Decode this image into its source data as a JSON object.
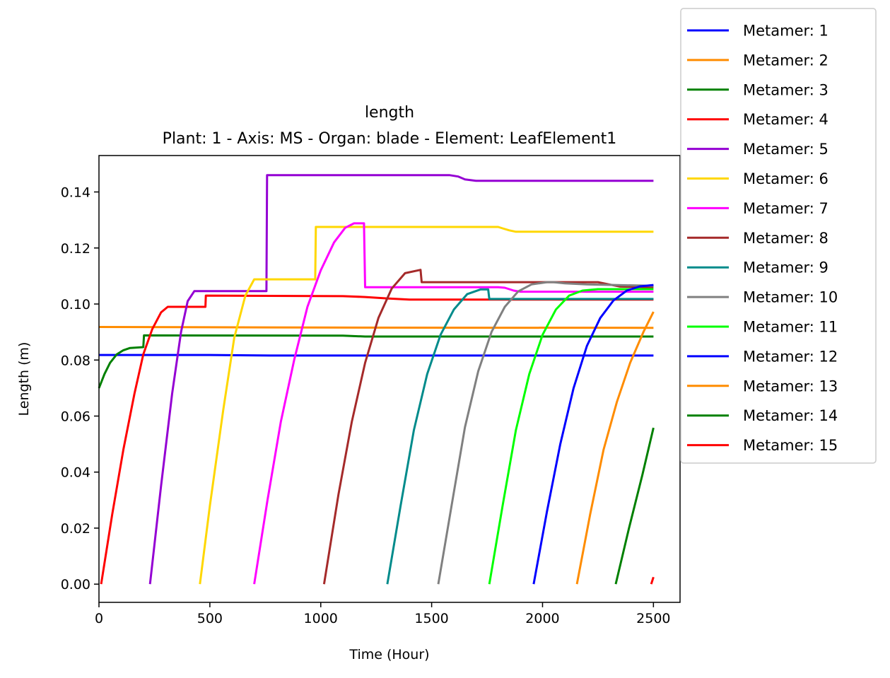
{
  "chart_data": {
    "type": "line",
    "title": "length",
    "subtitle": "Plant: 1 - Axis: MS - Organ: blade - Element: LeafElement1",
    "xlabel": "Time (Hour)",
    "ylabel": "Length (m)",
    "xlim": [
      0,
      2620
    ],
    "ylim": [
      -0.0065,
      0.153
    ],
    "xticks": [
      0,
      500,
      1000,
      1500,
      2000,
      2500
    ],
    "xtick_labels": [
      "0",
      "500",
      "1000",
      "1500",
      "2000",
      "2500"
    ],
    "yticks": [
      0.0,
      0.02,
      0.04,
      0.06,
      0.08,
      0.1,
      0.12,
      0.14
    ],
    "ytick_labels": [
      "0.00",
      "0.02",
      "0.04",
      "0.06",
      "0.08",
      "0.10",
      "0.12",
      "0.14"
    ],
    "grid": false,
    "legend_position": "upper-right-outside",
    "series": [
      {
        "name": "Metamer: 1",
        "color": "#0000ff",
        "points": [
          [
            0,
            0.0818
          ],
          [
            500,
            0.0818
          ],
          [
            800,
            0.0816
          ],
          [
            2500,
            0.0816
          ]
        ]
      },
      {
        "name": "Metamer: 2",
        "color": "#ff8c00",
        "points": [
          [
            0,
            0.0918
          ],
          [
            1000,
            0.0916
          ],
          [
            2500,
            0.0915
          ]
        ]
      },
      {
        "name": "Metamer: 3",
        "color": "#008000",
        "points": [
          [
            0,
            0.07
          ],
          [
            25,
            0.075
          ],
          [
            50,
            0.079
          ],
          [
            80,
            0.082
          ],
          [
            110,
            0.0835
          ],
          [
            140,
            0.0843
          ],
          [
            200,
            0.0846
          ],
          [
            203,
            0.0888
          ],
          [
            1100,
            0.0887
          ],
          [
            1200,
            0.0884
          ],
          [
            2500,
            0.0884
          ]
        ]
      },
      {
        "name": "Metamer: 4",
        "color": "#ff0000",
        "points": [
          [
            10,
            0.0
          ],
          [
            60,
            0.025
          ],
          [
            110,
            0.048
          ],
          [
            160,
            0.068
          ],
          [
            200,
            0.082
          ],
          [
            240,
            0.091
          ],
          [
            280,
            0.097
          ],
          [
            310,
            0.099
          ],
          [
            480,
            0.099
          ],
          [
            482,
            0.103
          ],
          [
            1100,
            0.1028
          ],
          [
            1200,
            0.1025
          ],
          [
            1300,
            0.102
          ],
          [
            1400,
            0.1016
          ],
          [
            2500,
            0.1016
          ]
        ]
      },
      {
        "name": "Metamer: 5",
        "color": "#9400d3",
        "points": [
          [
            230,
            0.0
          ],
          [
            280,
            0.035
          ],
          [
            330,
            0.068
          ],
          [
            370,
            0.09
          ],
          [
            400,
            0.101
          ],
          [
            430,
            0.1046
          ],
          [
            755,
            0.1046
          ],
          [
            758,
            0.146
          ],
          [
            1580,
            0.146
          ],
          [
            1620,
            0.1455
          ],
          [
            1650,
            0.1445
          ],
          [
            1700,
            0.144
          ],
          [
            2500,
            0.144
          ]
        ]
      },
      {
        "name": "Metamer: 6",
        "color": "#ffd700",
        "points": [
          [
            455,
            0.0
          ],
          [
            500,
            0.028
          ],
          [
            560,
            0.062
          ],
          [
            610,
            0.088
          ],
          [
            660,
            0.103
          ],
          [
            700,
            0.1088
          ],
          [
            975,
            0.1088
          ],
          [
            978,
            0.1275
          ],
          [
            1800,
            0.1275
          ],
          [
            1820,
            0.127
          ],
          [
            1850,
            0.1263
          ],
          [
            1880,
            0.1258
          ],
          [
            2500,
            0.1258
          ]
        ]
      },
      {
        "name": "Metamer: 7",
        "color": "#ff00ff",
        "points": [
          [
            700,
            0.0
          ],
          [
            760,
            0.03
          ],
          [
            820,
            0.058
          ],
          [
            880,
            0.08
          ],
          [
            940,
            0.099
          ],
          [
            1000,
            0.112
          ],
          [
            1060,
            0.122
          ],
          [
            1110,
            0.1272
          ],
          [
            1150,
            0.1288
          ],
          [
            1195,
            0.1288
          ],
          [
            1200,
            0.106
          ],
          [
            1800,
            0.106
          ],
          [
            1830,
            0.1058
          ],
          [
            1870,
            0.1048
          ],
          [
            1900,
            0.1044
          ],
          [
            2500,
            0.1044
          ]
        ]
      },
      {
        "name": "Metamer: 8",
        "color": "#a52a2a",
        "points": [
          [
            1015,
            0.0
          ],
          [
            1080,
            0.032
          ],
          [
            1140,
            0.058
          ],
          [
            1200,
            0.079
          ],
          [
            1260,
            0.095
          ],
          [
            1320,
            0.1055
          ],
          [
            1380,
            0.111
          ],
          [
            1450,
            0.1122
          ],
          [
            1455,
            0.1078
          ],
          [
            2250,
            0.1078
          ],
          [
            2300,
            0.107
          ],
          [
            2350,
            0.1062
          ],
          [
            2500,
            0.106
          ]
        ]
      },
      {
        "name": "Metamer: 9",
        "color": "#008b8b",
        "points": [
          [
            1300,
            0.0
          ],
          [
            1360,
            0.028
          ],
          [
            1420,
            0.055
          ],
          [
            1480,
            0.075
          ],
          [
            1540,
            0.089
          ],
          [
            1600,
            0.098
          ],
          [
            1660,
            0.1035
          ],
          [
            1720,
            0.1052
          ],
          [
            1755,
            0.1052
          ],
          [
            1760,
            0.1018
          ],
          [
            2500,
            0.1018
          ]
        ]
      },
      {
        "name": "Metamer: 10",
        "color": "#808080",
        "points": [
          [
            1530,
            0.0
          ],
          [
            1590,
            0.028
          ],
          [
            1650,
            0.056
          ],
          [
            1710,
            0.076
          ],
          [
            1770,
            0.09
          ],
          [
            1830,
            0.099
          ],
          [
            1890,
            0.1045
          ],
          [
            1950,
            0.107
          ],
          [
            2020,
            0.1078
          ],
          [
            2050,
            0.1078
          ],
          [
            2100,
            0.1074
          ],
          [
            2200,
            0.107
          ],
          [
            2500,
            0.1065
          ]
        ]
      },
      {
        "name": "Metamer: 11",
        "color": "#00ff00",
        "points": [
          [
            1760,
            0.0
          ],
          [
            1820,
            0.028
          ],
          [
            1880,
            0.055
          ],
          [
            1940,
            0.075
          ],
          [
            2000,
            0.089
          ],
          [
            2060,
            0.098
          ],
          [
            2120,
            0.103
          ],
          [
            2180,
            0.1048
          ],
          [
            2250,
            0.1053
          ],
          [
            2500,
            0.1053
          ]
        ]
      },
      {
        "name": "Metamer: 12",
        "color": "#0000ff",
        "points": [
          [
            1960,
            0.0
          ],
          [
            2020,
            0.026
          ],
          [
            2080,
            0.05
          ],
          [
            2140,
            0.07
          ],
          [
            2200,
            0.085
          ],
          [
            2260,
            0.095
          ],
          [
            2320,
            0.1013
          ],
          [
            2380,
            0.1048
          ],
          [
            2440,
            0.1063
          ],
          [
            2500,
            0.1068
          ]
        ]
      },
      {
        "name": "Metamer: 13",
        "color": "#ff8c00",
        "points": [
          [
            2155,
            0.0
          ],
          [
            2215,
            0.025
          ],
          [
            2275,
            0.048
          ],
          [
            2335,
            0.065
          ],
          [
            2395,
            0.079
          ],
          [
            2455,
            0.09
          ],
          [
            2500,
            0.0972
          ]
        ]
      },
      {
        "name": "Metamer: 14",
        "color": "#008000",
        "points": [
          [
            2330,
            0.0
          ],
          [
            2390,
            0.02
          ],
          [
            2450,
            0.039
          ],
          [
            2500,
            0.0558
          ]
        ]
      },
      {
        "name": "Metamer: 15",
        "color": "#ff0000",
        "points": [
          [
            2490,
            0.0
          ],
          [
            2500,
            0.0025
          ]
        ]
      }
    ]
  }
}
